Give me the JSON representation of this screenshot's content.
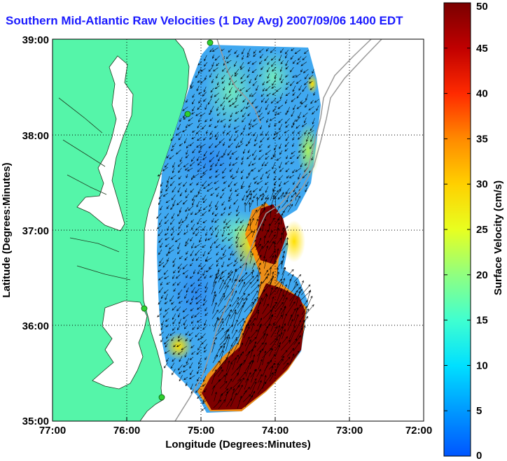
{
  "title": "Southern Mid-Atlantic Raw Velocities (1 Day Avg) 2007/09/06 1400 EDT",
  "axes": {
    "xlabel": "Longitude (Degrees:Minutes)",
    "ylabel": "Latitude (Degrees:Minutes)",
    "xticks": [
      "77:00",
      "76:00",
      "75:00",
      "74:00",
      "73:00",
      "72:00"
    ],
    "yticks": [
      "39:00",
      "38:00",
      "37:00",
      "36:00",
      "35:00"
    ]
  },
  "colorbar": {
    "label": "Surface Velocity (cm/s)",
    "min": 0,
    "max": 50,
    "ticks": [
      "0",
      "5",
      "10",
      "15",
      "20",
      "25",
      "30",
      "35",
      "40",
      "45",
      "50"
    ]
  },
  "colors": {
    "land": "#55f5a9",
    "water": "#ffffff",
    "title": "#1a1aff",
    "station": "#2fd02f",
    "bathymetry": "#9a9a9a"
  }
}
